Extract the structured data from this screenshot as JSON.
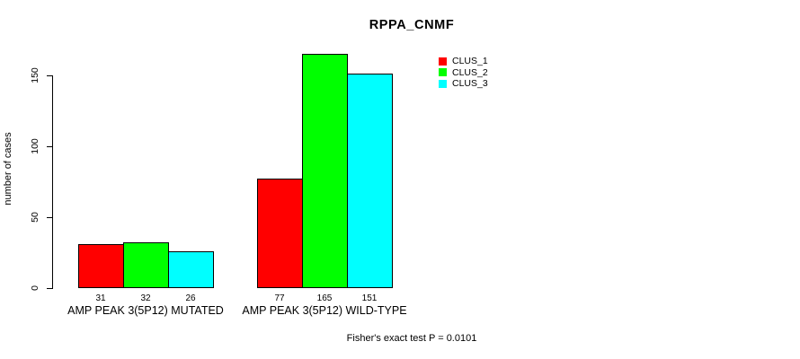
{
  "title": "RPPA_CNMF",
  "chart_data": {
    "type": "bar",
    "title": "RPPA_CNMF",
    "ylabel": "number of cases",
    "xlabel": "",
    "categories": [
      "AMP PEAK 3(5P12) MUTATED",
      "AMP PEAK 3(5P12) WILD-TYPE"
    ],
    "series": [
      {
        "name": "CLUS_1",
        "color": "#ff0000",
        "values": [
          31,
          77
        ]
      },
      {
        "name": "CLUS_2",
        "color": "#00ff00",
        "values": [
          32,
          165
        ]
      },
      {
        "name": "CLUS_3",
        "color": "#00ffff",
        "values": [
          26,
          151
        ]
      }
    ],
    "yticks": [
      0,
      50,
      100,
      150
    ],
    "ylim": [
      0,
      165
    ],
    "grid": false,
    "legend_position": "top-right",
    "bar_value_labels_shown": true,
    "annotation": "Fisher's exact test P = 0.0101"
  },
  "colors": {
    "axis": "#000000",
    "bar_border": "#000000",
    "background": "#ffffff",
    "clus_1": "#ff0000",
    "clus_2": "#00ff00",
    "clus_3": "#00ffff"
  }
}
